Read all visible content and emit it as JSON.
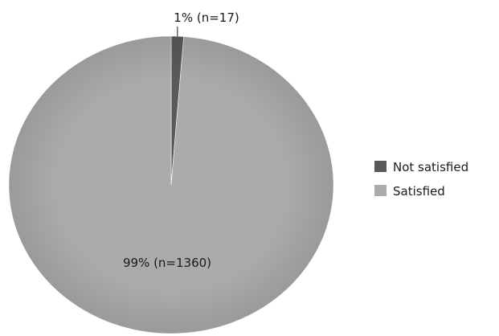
{
  "chart_data": {
    "type": "pie",
    "categories": [
      "Not satisfied",
      "Satisfied"
    ],
    "values": [
      17,
      1360
    ],
    "percent_labels": [
      "1% (n=17)",
      "99% (n=1360)"
    ],
    "colors": [
      "#5a5a5a",
      "#ababab"
    ],
    "legend": {
      "position": "right",
      "entries": [
        {
          "label": "Not satisfied",
          "color": "#5a5a5a"
        },
        {
          "label": "Satisfied",
          "color": "#ababab"
        }
      ]
    },
    "start_angle_deg": 0,
    "direction": "clockwise"
  }
}
